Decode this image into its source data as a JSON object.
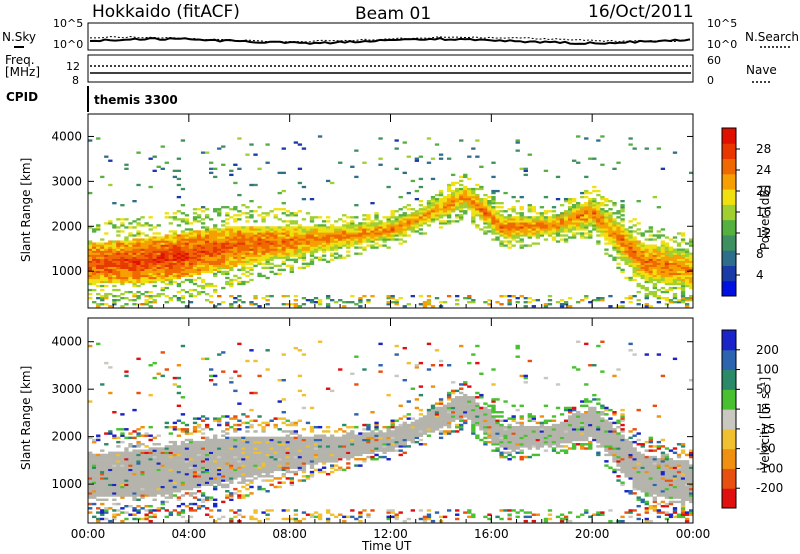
{
  "header": {
    "station": "Hokkaido (fitACF)",
    "beam": "Beam 01",
    "date": "16/Oct/2011"
  },
  "top_panels": {
    "nsky_label": "N.Sky",
    "nsearch_label": "N.Search",
    "nsky_ticks": [
      "10^5",
      "10^0"
    ],
    "nsearch_ticks": [
      "10^5",
      "10^0"
    ],
    "freq_label": "Freq.",
    "freq_unit": "[MHz]",
    "freq_ticks": [
      "12",
      "8"
    ],
    "nave_label": "Nave",
    "nave_ticks": [
      "60",
      "0"
    ],
    "cpid_label": "CPID",
    "cpid_value": "themis 3300"
  },
  "colors": {
    "power": [
      "#0010e0",
      "#1a3aa8",
      "#2f6e8a",
      "#3f9060",
      "#55b040",
      "#a0d030",
      "#f0e010",
      "#f5a000",
      "#f06800",
      "#e83800",
      "#e01000"
    ],
    "velocity": [
      "#1a24c8",
      "#2c64b0",
      "#2a8a68",
      "#48c030",
      "#c8c8c0",
      "#f0c030",
      "#f09010",
      "#e85010",
      "#e01010"
    ],
    "ground_scatter": "#b4b4ac"
  },
  "chart_data": [
    {
      "type": "heatmap",
      "name": "power",
      "ylabel": "Slant Range [km]",
      "xlabel": "",
      "x_ticks": [
        "00:00",
        "04:00",
        "08:00",
        "12:00",
        "16:00",
        "20:00",
        "00:00"
      ],
      "xlim": [
        0,
        24
      ],
      "y_ticks": [
        "1000",
        "2000",
        "3000",
        "4000"
      ],
      "ylim": [
        180,
        4500
      ],
      "colorbar_label": "Power [dB]",
      "colorbar_ticks": [
        "4",
        "8",
        "12",
        "16",
        "20",
        "24",
        "28"
      ],
      "colorbar_range": [
        0,
        32
      ],
      "features": [
        {
          "hour": 0.0,
          "center_km": 1150,
          "width_km": 900,
          "level": 27
        },
        {
          "hour": 2.0,
          "center_km": 1200,
          "width_km": 1000,
          "level": 28
        },
        {
          "hour": 4.0,
          "center_km": 1350,
          "width_km": 1000,
          "level": 28
        },
        {
          "hour": 6.0,
          "center_km": 1550,
          "width_km": 900,
          "level": 26
        },
        {
          "hour": 8.0,
          "center_km": 1650,
          "width_km": 700,
          "level": 25
        },
        {
          "hour": 10.0,
          "center_km": 1750,
          "width_km": 500,
          "level": 24
        },
        {
          "hour": 12.0,
          "center_km": 1900,
          "width_km": 400,
          "level": 24
        },
        {
          "hour": 13.5,
          "center_km": 2250,
          "width_km": 400,
          "level": 23
        },
        {
          "hour": 15.0,
          "center_km": 2650,
          "width_km": 500,
          "level": 24
        },
        {
          "hour": 16.5,
          "center_km": 1950,
          "width_km": 500,
          "level": 25
        },
        {
          "hour": 18.5,
          "center_km": 2000,
          "width_km": 400,
          "level": 24
        },
        {
          "hour": 20.0,
          "center_km": 2300,
          "width_km": 600,
          "level": 24
        },
        {
          "hour": 22.0,
          "center_km": 1200,
          "width_km": 800,
          "level": 25
        },
        {
          "hour": 24.0,
          "center_km": 1000,
          "width_km": 800,
          "level": 24
        }
      ]
    },
    {
      "type": "heatmap",
      "name": "velocity",
      "ylabel": "Slant Range [km]",
      "xlabel": "Time UT",
      "x_ticks": [
        "00:00",
        "04:00",
        "08:00",
        "12:00",
        "16:00",
        "20:00",
        "00:00"
      ],
      "xlim": [
        0,
        24
      ],
      "y_ticks": [
        "1000",
        "2000",
        "3000",
        "4000"
      ],
      "ylim": [
        180,
        4500
      ],
      "colorbar_label": "Velocity [m s⁻¹]",
      "colorbar_ticks": [
        "200",
        "100",
        "50",
        "15",
        "-15",
        "-50",
        "-100",
        "-200"
      ],
      "colorbar_range": [
        -250,
        250
      ]
    }
  ]
}
